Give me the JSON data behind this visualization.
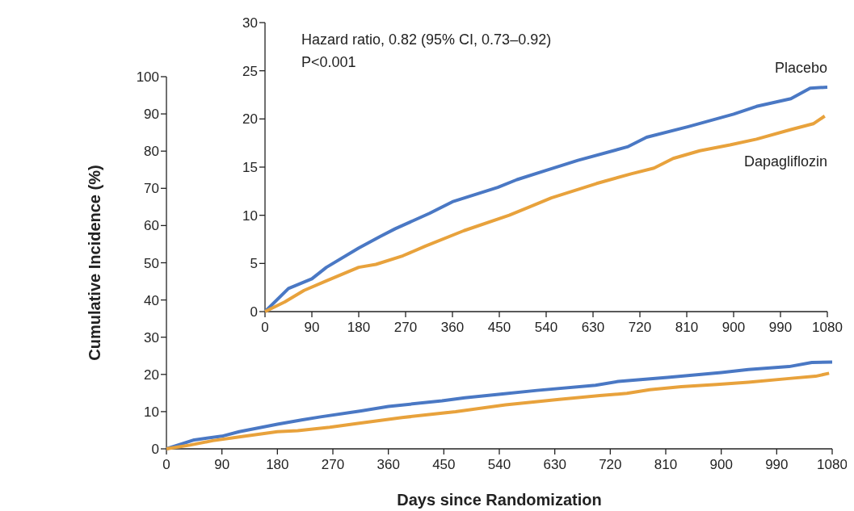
{
  "chart_data": [
    {
      "type": "line",
      "xlabel": "Days since Randomization",
      "ylabel": "Cumulative Incidence (%)",
      "xlim": [
        0,
        1080
      ],
      "ylim": [
        0,
        100
      ],
      "xticks": [
        0,
        90,
        180,
        270,
        360,
        450,
        540,
        630,
        720,
        810,
        900,
        990,
        1080
      ],
      "yticks": [
        0,
        10,
        20,
        30,
        40,
        50,
        60,
        70,
        80,
        90,
        100
      ],
      "grid": false,
      "series": [
        {
          "color": "#4a78c4",
          "x": [
            0,
            45,
            90,
            118,
            180,
            221,
            250,
            316,
            360,
            447,
            484,
            542,
            601,
            696,
            733,
            813,
            900,
            944,
            1010,
            1047,
            1080
          ],
          "values": [
            0,
            2.4,
            3.4,
            4.6,
            6.6,
            7.8,
            8.6,
            10.2,
            11.4,
            12.9,
            13.7,
            14.7,
            15.7,
            17.1,
            18.1,
            19.2,
            20.5,
            21.3,
            22.1,
            23.2,
            23.3
          ]
        },
        {
          "color": "#e8a23c",
          "x": [
            0,
            38,
            75,
            118,
            180,
            213,
            265,
            308,
            382,
            469,
            550,
            637,
            703,
            747,
            784,
            835,
            893,
            944,
            1010,
            1053,
            1075
          ],
          "values": [
            0,
            1.0,
            2.2,
            3.2,
            4.6,
            4.9,
            5.8,
            6.8,
            8.4,
            10.0,
            11.8,
            13.3,
            14.3,
            14.9,
            15.9,
            16.7,
            17.3,
            17.9,
            18.9,
            19.5,
            20.3
          ]
        }
      ]
    },
    {
      "type": "line",
      "annotations": [
        "Hazard ratio, 0.82 (95% CI, 0.73–0.92)",
        "P<0.001"
      ],
      "xlim": [
        0,
        1080
      ],
      "ylim": [
        0,
        30
      ],
      "xticks": [
        0,
        90,
        180,
        270,
        360,
        450,
        540,
        630,
        720,
        810,
        900,
        990,
        1080
      ],
      "yticks": [
        0,
        5,
        10,
        15,
        20,
        25,
        30
      ],
      "grid": false,
      "series": [
        {
          "name": "Placebo",
          "color": "#4a78c4",
          "x": [
            0,
            45,
            90,
            118,
            180,
            221,
            250,
            316,
            360,
            447,
            484,
            542,
            601,
            696,
            733,
            813,
            900,
            944,
            1010,
            1047,
            1080
          ],
          "values": [
            0,
            2.4,
            3.4,
            4.6,
            6.6,
            7.8,
            8.6,
            10.2,
            11.4,
            12.9,
            13.7,
            14.7,
            15.7,
            17.1,
            18.1,
            19.2,
            20.5,
            21.3,
            22.1,
            23.2,
            23.3
          ]
        },
        {
          "name": "Dapagliflozin",
          "color": "#e8a23c",
          "x": [
            0,
            38,
            75,
            118,
            180,
            213,
            265,
            308,
            382,
            469,
            550,
            637,
            703,
            747,
            784,
            835,
            893,
            944,
            1010,
            1053,
            1075
          ],
          "values": [
            0,
            1.0,
            2.2,
            3.2,
            4.6,
            4.9,
            5.8,
            6.8,
            8.4,
            10.0,
            11.8,
            13.3,
            14.3,
            14.9,
            15.9,
            16.7,
            17.3,
            17.9,
            18.9,
            19.5,
            20.3
          ]
        }
      ]
    }
  ]
}
